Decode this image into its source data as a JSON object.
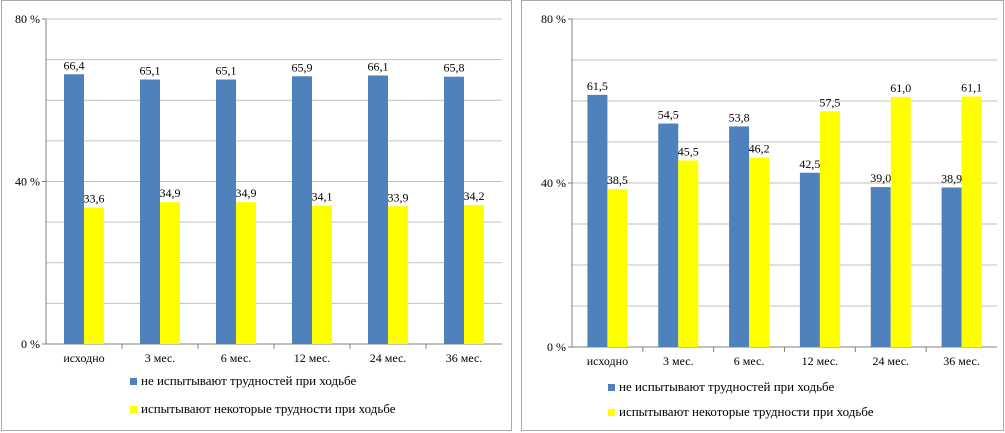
{
  "chart_data": [
    {
      "type": "bar",
      "categories": [
        "исходно",
        "3 мес.",
        "6 мес.",
        "12 мес.",
        "24 мес.",
        "36 мес."
      ],
      "series": [
        {
          "name": "не испытывают трудностей при ходьбе",
          "values": [
            66.4,
            65.1,
            65.1,
            65.9,
            66.1,
            65.8
          ],
          "labels": [
            "66,4",
            "65,1",
            "65,1",
            "65,9",
            "66,1",
            "65,8"
          ],
          "color": "#4f81bd"
        },
        {
          "name": "испытывают некоторые трудности при ходьбе",
          "values": [
            33.6,
            34.9,
            34.9,
            34.1,
            33.9,
            34.2
          ],
          "labels": [
            "33,6",
            "34,9",
            "34,9",
            "34,1",
            "33,9",
            "34,2"
          ],
          "color": "#ffff00"
        }
      ],
      "ylim": [
        0,
        80
      ],
      "yticks": [
        {
          "value": 0,
          "label": "0 %"
        },
        {
          "value": 40,
          "label": "40 %"
        },
        {
          "value": 80,
          "label": "80 %"
        }
      ],
      "grid": true,
      "legend_position": "bottom"
    },
    {
      "type": "bar",
      "categories": [
        "исходно",
        "3 мес.",
        "6 мес.",
        "12 мес.",
        "24 мес.",
        "36 мес."
      ],
      "series": [
        {
          "name": "не испытывают трудностей при ходьбе",
          "values": [
            61.5,
            54.5,
            53.8,
            42.5,
            39.0,
            38.9
          ],
          "labels": [
            "61,5",
            "54,5",
            "53,8",
            "42,5",
            "39,0",
            "38,9"
          ],
          "color": "#4f81bd"
        },
        {
          "name": "испытывают некоторые трудности при ходьбе",
          "values": [
            38.5,
            45.5,
            46.2,
            57.5,
            61.0,
            61.1
          ],
          "labels": [
            "38,5",
            "45,5",
            "46,2",
            "57,5",
            "61,0",
            "61,1"
          ],
          "color": "#ffff00"
        }
      ],
      "ylim": [
        0,
        80
      ],
      "yticks": [
        {
          "value": 0,
          "label": "0 %"
        },
        {
          "value": 40,
          "label": "40 %"
        },
        {
          "value": 80,
          "label": "80 %"
        }
      ],
      "grid": true,
      "legend_position": "bottom"
    }
  ]
}
